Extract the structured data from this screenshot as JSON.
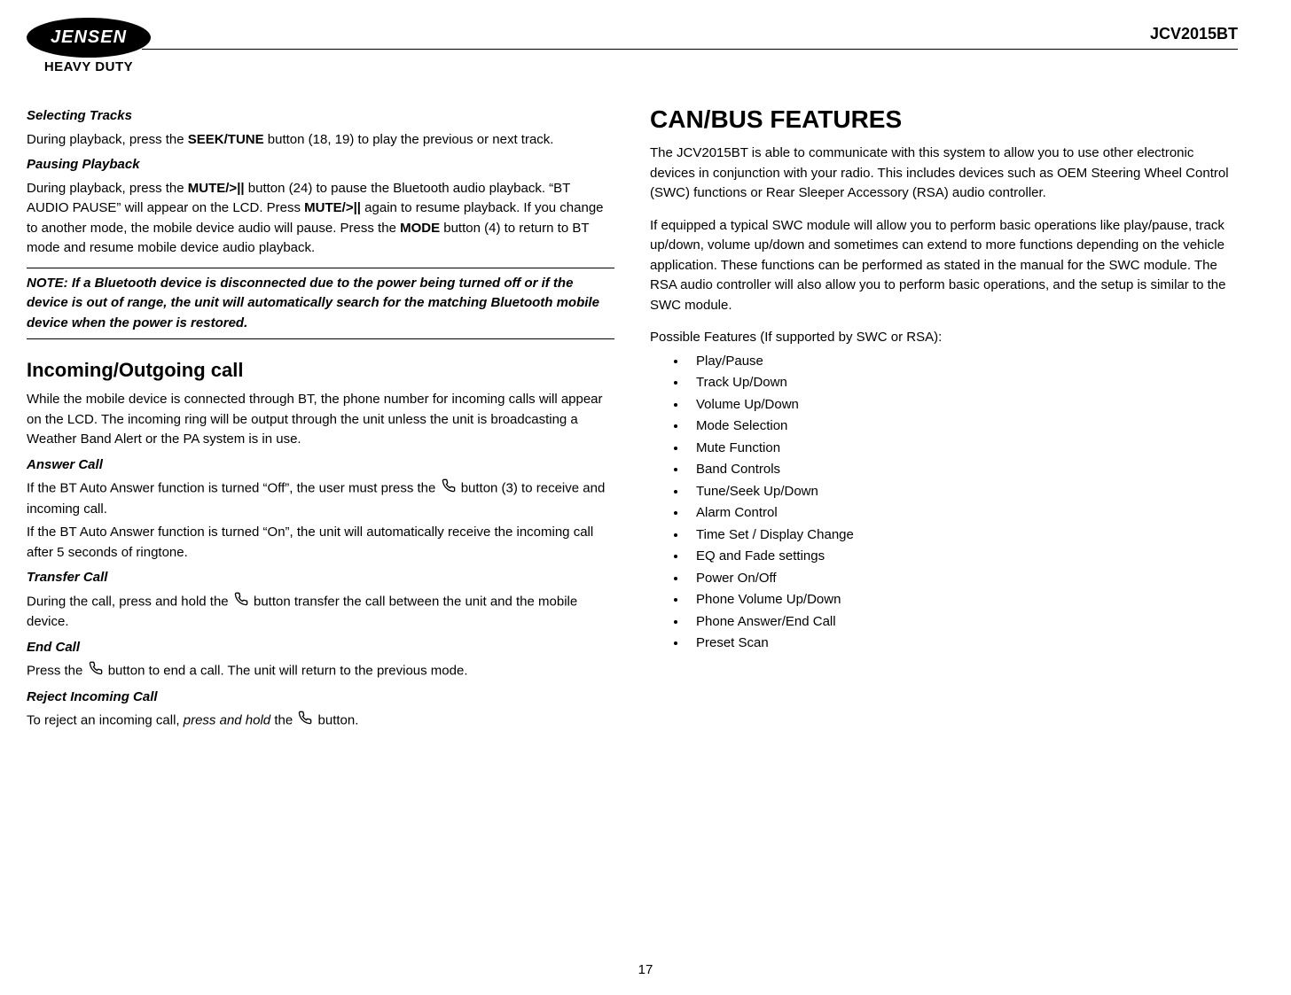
{
  "header": {
    "brand": "JENSEN",
    "subbrand": "HEAVY DUTY",
    "model": "JCV2015BT"
  },
  "left": {
    "h1": "Selecting Tracks",
    "p1a": "During playback, press the ",
    "p1b": "SEEK/TUNE",
    "p1c": " button (18, 19) to play the previous or next track.",
    "h2": "Pausing Playback",
    "p2a": "During playback, press the ",
    "p2b": "MUTE/>||",
    "p2c": " button (24) to pause the Bluetooth audio playback. “BT AUDIO PAUSE” will appear on the LCD. Press ",
    "p2d": "MUTE/>||",
    "p2e": " again to resume playback. If you change to another mode, the mobile device audio will pause. Press the ",
    "p2f": "MODE",
    "p2g": " button (4) to return to BT mode and resume mobile device audio playback.",
    "note": "NOTE: If a Bluetooth device is disconnected due to the power being turned off or if the device is out of range, the unit will automatically search for the matching Bluetooth mobile device when the power is restored.",
    "sec1": "Incoming/Outgoing call",
    "p3": "While the mobile device is connected through BT, the phone number for incoming calls will appear on the LCD. The incoming ring will be output through the unit unless the unit is broadcasting a Weather Band Alert or the PA system is in use.",
    "h3": "Answer Call",
    "p4a": "If the BT Auto Answer function is turned “Off”, the user must press the ",
    "p4b": " button (3) to receive and incoming call.",
    "p5": "If the BT Auto Answer function is turned “On”, the unit will automatically receive the incoming call after 5 seconds of ringtone.",
    "h4": "Transfer Call",
    "p6a": "During the call, press and hold the ",
    "p6b": " button transfer the call between the unit and the mobile device.",
    "h5": "End Call",
    "p7a": "Press the ",
    "p7b": " button to end a call. The unit will return to the previous mode.",
    "h6": "Reject Incoming Call",
    "p8a": "To reject an incoming call, ",
    "p8b": "press and hold",
    "p8c": " the ",
    "p8d": " button."
  },
  "right": {
    "sec": "CAN/BUS FEATURES",
    "p1": "The JCV2015BT is able to communicate with this system to allow you to use other electronic devices in conjunction with your radio. This includes devices such as OEM Steering Wheel Control (SWC) functions or Rear Sleeper Accessory (RSA) audio controller.",
    "p2": "If equipped a typical SWC module will allow you to perform basic operations like play/pause, track up/down, volume up/down and sometimes can extend to more functions depending on the vehicle application. These functions can be performed as stated in the manual for the SWC module. The RSA audio controller will also allow you to perform basic operations, and the setup is similar to the SWC module.",
    "listTitle": "Possible Features (If supported by SWC or RSA):",
    "features": [
      "Play/Pause",
      "Track Up/Down",
      "Volume Up/Down",
      "Mode Selection",
      "Mute Function",
      "Band Controls",
      "Tune/Seek Up/Down",
      "Alarm Control",
      "Time Set / Display Change",
      "EQ and Fade settings",
      "Power On/Off",
      "Phone Volume Up/Down",
      "Phone Answer/End Call",
      "Preset Scan"
    ]
  },
  "pageNumber": "17",
  "style": {
    "body_font_size": 15,
    "heading_font_size": 22,
    "big_heading_font_size": 28,
    "text_color": "#000000",
    "background_color": "#ffffff"
  }
}
